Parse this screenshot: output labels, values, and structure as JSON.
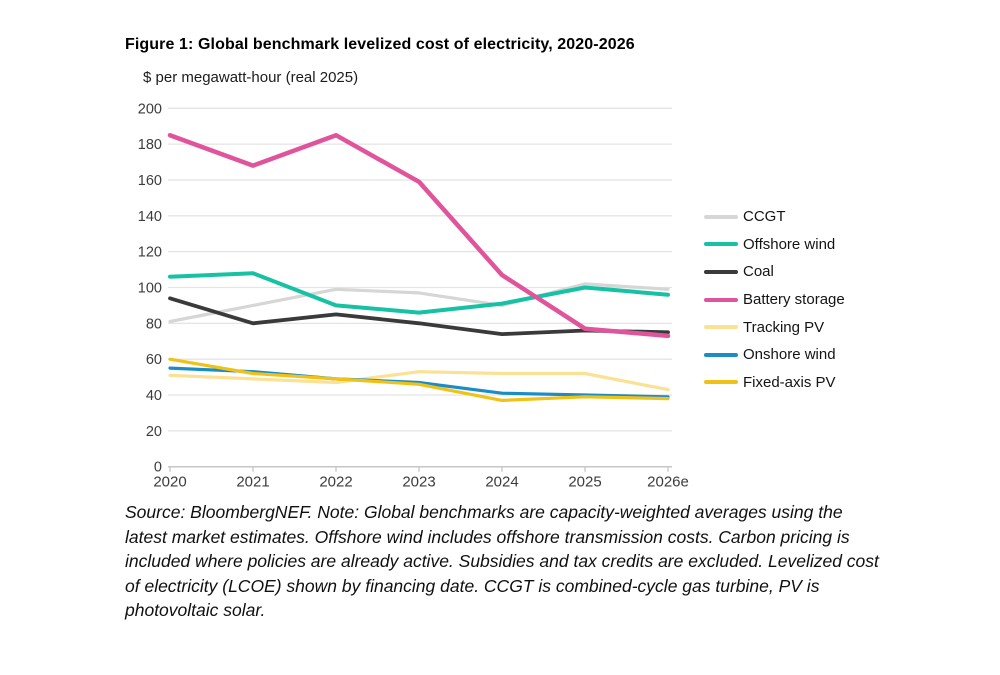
{
  "page": {
    "title": "Figure 1: Global benchmark levelized cost of electricity, 2020-2026",
    "unit_label": "$ per megawatt-hour (real 2025)",
    "note_lines": [
      "Source: BloombergNEF. Note: Global benchmarks are capacity-weighted averages using the",
      "latest market estimates. Offshore wind includes offshore transmission costs. Carbon pricing is",
      "included where policies are already active. Subsidies and tax credits are excluded. Levelized cost",
      "of electricity (LCOE) shown by financing date. CCGT is combined-cycle gas turbine, PV is",
      "photovoltaic solar."
    ]
  },
  "chart_data": {
    "type": "line",
    "title": "Figure 1: Global benchmark levelized cost of electricity, 2020-2026",
    "ylabel": "$ per megawatt-hour (real 2025)",
    "xlabel": "",
    "categories": [
      "2020",
      "2021",
      "2022",
      "2023",
      "2024",
      "2025",
      "2026e"
    ],
    "series": [
      {
        "name": "CCGT",
        "color": "#d6d6d6",
        "values": [
          81,
          90,
          99,
          97,
          90,
          102,
          99
        ]
      },
      {
        "name": "Offshore wind",
        "color": "#16c2a3",
        "values": [
          106,
          108,
          90,
          86,
          91,
          100,
          96
        ]
      },
      {
        "name": "Coal",
        "color": "#3a3a3a",
        "values": [
          94,
          80,
          85,
          80,
          74,
          76,
          75
        ]
      },
      {
        "name": "Battery storage",
        "color": "#e0549c",
        "values": [
          185,
          168,
          185,
          159,
          107,
          77,
          73
        ]
      },
      {
        "name": "Tracking PV",
        "color": "#fbe193",
        "values": [
          51,
          49,
          47,
          53,
          52,
          52,
          43
        ]
      },
      {
        "name": "Onshore wind",
        "color": "#1b8dc6",
        "values": [
          55,
          53,
          49,
          47,
          41,
          40,
          39
        ]
      },
      {
        "name": "Fixed-axis PV",
        "color": "#f0c217",
        "values": [
          60,
          52,
          49,
          46,
          37,
          39,
          38
        ]
      }
    ],
    "ylim": [
      0,
      200
    ],
    "ytick_step": 20,
    "grid": "horizontal",
    "legend_position": "right"
  },
  "colors": {
    "gridline": "#e4e4e4",
    "axis_line": "#c6c6c6",
    "tick_label": "#3c3c3c"
  }
}
